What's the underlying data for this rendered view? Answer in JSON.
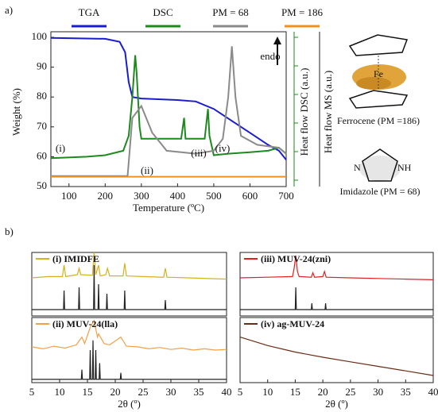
{
  "panel_labels": [
    "a)",
    "b)"
  ],
  "chart_data": [
    {
      "type": "line",
      "x_label": "Temperature (ºC)",
      "y_label": "Weight (%)",
      "y2_label": "Heat flow DSC (a.u.)",
      "y3_label": "Heat flow MS (a.u.)",
      "xlim": [
        50,
        700
      ],
      "xticks": [
        100,
        200,
        300,
        400,
        500,
        600,
        700
      ],
      "ylim": [
        50,
        100
      ],
      "yticks": [
        50,
        60,
        70,
        80,
        90,
        100
      ],
      "y2lim": [
        0,
        50
      ],
      "annotations": [
        "endo",
        "(i)",
        "(ii)",
        "(iii)",
        "(iv)"
      ],
      "series": [
        {
          "name": "TGA",
          "color": "#1c1ccf",
          "x": [
            50,
            100,
            200,
            240,
            255,
            265,
            275,
            300,
            400,
            450,
            500,
            550,
            600,
            650,
            680,
            700
          ],
          "values": [
            99.8,
            99.7,
            99.5,
            98.5,
            95,
            85,
            80,
            79.5,
            79,
            78.5,
            76,
            72,
            68,
            64,
            62,
            59
          ]
        },
        {
          "name": "DSC",
          "color": "#1e8a1e",
          "axis": "y2",
          "x": [
            50,
            150,
            200,
            250,
            265,
            275,
            283,
            287,
            295,
            300,
            410,
            418,
            422,
            475,
            484,
            488,
            500,
            540,
            600,
            650,
            680,
            700
          ],
          "values": [
            9.5,
            10,
            10.5,
            12,
            17,
            30,
            44,
            38,
            20,
            16,
            16,
            23,
            16,
            16,
            26,
            17,
            10.5,
            11,
            11.5,
            12,
            13,
            11
          ]
        },
        {
          "name": "PM = 68",
          "color": "#8a8a8a",
          "axis": "y2",
          "x": [
            50,
            262,
            275,
            300,
            330,
            370,
            450,
            500,
            525,
            540,
            550,
            560,
            575,
            620,
            680,
            700
          ],
          "values": [
            3.5,
            3.5,
            23,
            27,
            18,
            12,
            11,
            12,
            16,
            30,
            47,
            30,
            17,
            14,
            13,
            11
          ]
        },
        {
          "name": "PM = 186",
          "color": "#f0901e",
          "axis": "y2",
          "x": [
            50,
            700
          ],
          "values": [
            3.3,
            3.3
          ]
        }
      ]
    },
    {
      "type": "line",
      "xlim": [
        5,
        40
      ],
      "ylim": [
        0,
        10
      ],
      "series": [
        {
          "name": "(i) IMIDFE",
          "color": "#d4b21c",
          "x": [
            5,
            8,
            10.5,
            10.8,
            11.1,
            13.2,
            13.5,
            13.8,
            15.9,
            16.2,
            16.5,
            17,
            17.3,
            18.3,
            18.6,
            19,
            21.4,
            21.7,
            22,
            25,
            28.7,
            29,
            29.3,
            33,
            40
          ],
          "values": [
            6,
            6.2,
            6.2,
            8,
            6.2,
            6.5,
            7.5,
            6.5,
            6.4,
            10,
            6.5,
            8,
            6.3,
            6.5,
            7.5,
            6.3,
            6.3,
            8.3,
            6.3,
            6.2,
            6.1,
            7.5,
            6.1,
            6,
            5.8
          ]
        },
        {
          "color": "#222222",
          "x": [
            5,
            10.7,
            10.8,
            10.9,
            13.4,
            13.5,
            13.6,
            16.1,
            16.2,
            16.3,
            16.9,
            17,
            17.1,
            18.4,
            18.5,
            18.6,
            21.6,
            21.7,
            21.8,
            28.9,
            29,
            29.1,
            40
          ],
          "values": [
            1,
            1,
            4,
            1,
            1,
            4.5,
            1,
            1,
            8,
            1,
            1,
            5,
            1,
            1,
            3.5,
            1,
            1,
            4,
            1,
            1,
            2.5,
            1,
            1
          ]
        }
      ]
    },
    {
      "type": "line",
      "xlim": [
        5,
        40
      ],
      "ylim": [
        0,
        10
      ],
      "x_label": "2θ (º)",
      "xticks": [
        5,
        10,
        15,
        20,
        25,
        30,
        35,
        40
      ],
      "series": [
        {
          "name": "(ii) MUV-24(lla)",
          "color": "#f2a04a",
          "x": [
            5,
            7,
            9,
            11,
            13,
            14,
            14.5,
            15.5,
            16.2,
            16.8,
            17,
            18,
            19,
            21,
            22,
            24,
            26,
            28,
            30,
            32,
            34,
            36,
            38,
            40
          ],
          "values": [
            5.5,
            5.2,
            5.6,
            5.3,
            5.8,
            7,
            6,
            8.5,
            9.5,
            7,
            7.5,
            6,
            5.8,
            7,
            5.6,
            5.5,
            5.2,
            5.4,
            5.1,
            5.3,
            5.0,
            5.2,
            5.0,
            5.1
          ]
        },
        {
          "color": "#222222",
          "x": [
            5,
            13.9,
            14,
            14.1,
            15.4,
            15.5,
            15.6,
            15.9,
            16,
            16.1,
            16.4,
            16.5,
            16.6,
            17.1,
            17.2,
            17.3,
            20.9,
            21,
            21.1,
            40
          ],
          "values": [
            0.5,
            0.5,
            2,
            0.5,
            0.5,
            5,
            0.5,
            0.5,
            6.5,
            0.5,
            0.5,
            5,
            0.5,
            0.5,
            3,
            0.5,
            0.5,
            1.5,
            0.5,
            0.5
          ]
        }
      ]
    },
    {
      "type": "line",
      "xlim": [
        5,
        40
      ],
      "ylim": [
        0,
        10
      ],
      "series": [
        {
          "name": "(iii) MUV-24(zni)",
          "color": "#e02020",
          "x": [
            5,
            10,
            14.5,
            14.8,
            15.1,
            15.4,
            15.7,
            17.9,
            18.2,
            18.5,
            20,
            20.3,
            20.6,
            25,
            30,
            35,
            40
          ],
          "values": [
            6,
            6.1,
            6.2,
            7.5,
            9.5,
            7,
            6.2,
            6.1,
            6.8,
            6.1,
            6.2,
            7,
            6.1,
            6,
            5.9,
            5.8,
            5.7
          ]
        },
        {
          "color": "#222222",
          "x": [
            5,
            15,
            15.1,
            15.2,
            17.9,
            18,
            18.1,
            20.4,
            20.5,
            20.6,
            40
          ],
          "values": [
            1,
            1,
            4.5,
            1,
            1,
            2,
            1,
            1,
            2,
            1,
            1
          ]
        }
      ]
    },
    {
      "type": "line",
      "xlim": [
        5,
        40
      ],
      "ylim": [
        0,
        10
      ],
      "x_label": "2θ (º)",
      "xticks": [
        5,
        10,
        15,
        20,
        25,
        30,
        35,
        40
      ],
      "series": [
        {
          "name": "(iv) ag-MUV-24",
          "color": "#6b2c14",
          "x": [
            5,
            10,
            15,
            20,
            25,
            30,
            35,
            40
          ],
          "values": [
            7,
            5.7,
            4.7,
            3.9,
            3.2,
            2.5,
            1.8,
            1.1
          ]
        }
      ]
    }
  ],
  "structures": {
    "ferrocene": {
      "atom": "Fe",
      "caption": "Ferrocene (PM =186)"
    },
    "imidazole": {
      "atoms": [
        "N",
        "NH"
      ],
      "caption": "Imidazole (PM = 68)"
    }
  }
}
